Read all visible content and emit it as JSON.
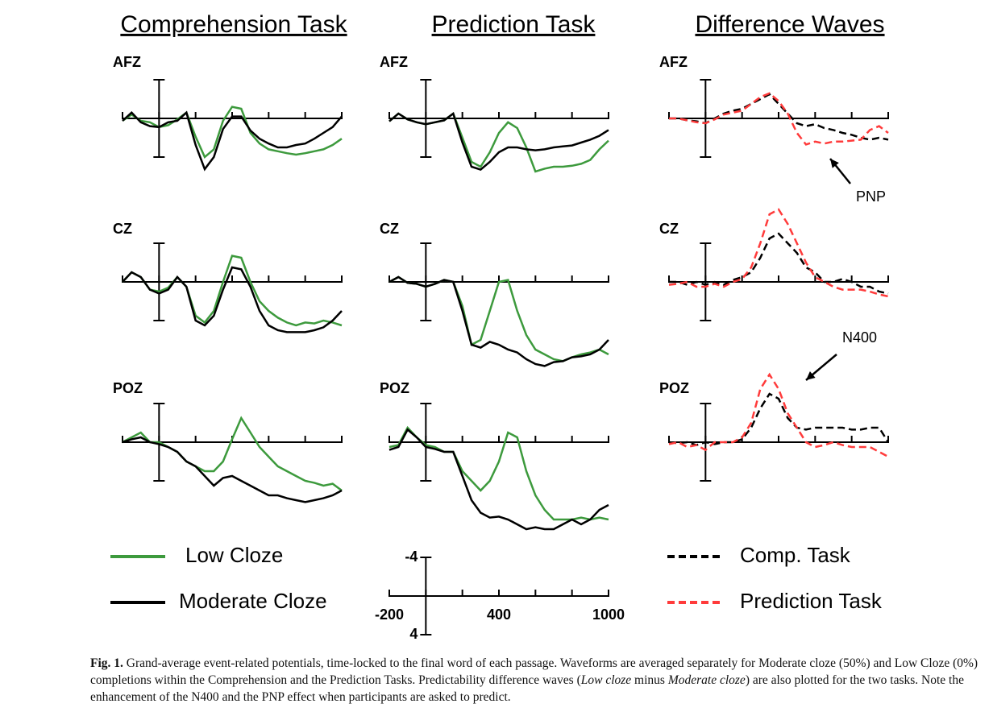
{
  "column_titles": [
    "Comprehension Task",
    "Prediction Task",
    "Difference Waves"
  ],
  "chart_data": [
    {
      "type": "line",
      "title": "AFZ",
      "x": [
        -200,
        -150,
        -100,
        -50,
        0,
        50,
        100,
        150,
        200,
        250,
        300,
        350,
        400,
        450,
        500,
        550,
        600,
        650,
        700,
        750,
        800,
        850,
        900,
        950,
        1000
      ],
      "series": [
        {
          "color": "#3d9a3d",
          "style": "solid",
          "values": [
            0.25,
            -0.4,
            0.25,
            0.4,
            0.9,
            0.7,
            0.1,
            -0.6,
            1.9,
            4,
            3.2,
            0.25,
            -1.2,
            -1,
            1.5,
            2.6,
            3.2,
            3.4,
            3.6,
            3.75,
            3.6,
            3.4,
            3.2,
            2.75,
            2.1
          ]
        },
        {
          "color": "#000000",
          "style": "solid",
          "values": [
            0.25,
            -0.6,
            0.4,
            0.8,
            0.9,
            0.4,
            0.25,
            -0.6,
            2.75,
            5.25,
            4,
            1.1,
            -0.2,
            -0.2,
            1.25,
            2.1,
            2.6,
            3,
            3,
            2.75,
            2.6,
            2.1,
            1.5,
            0.9,
            -0.2
          ]
        }
      ]
    },
    {
      "type": "line",
      "title": "AFZ",
      "x": [
        -200,
        -150,
        -100,
        -50,
        0,
        50,
        100,
        150,
        200,
        250,
        300,
        350,
        400,
        450,
        500,
        550,
        600,
        650,
        700,
        750,
        800,
        850,
        900,
        950,
        1000
      ],
      "series": [
        {
          "color": "#3d9a3d",
          "style": "solid",
          "values": [
            0.3,
            -0.5,
            0.1,
            0.4,
            0.6,
            0.4,
            0.2,
            -0.5,
            2,
            4.5,
            5,
            3.5,
            1.5,
            0.4,
            1,
            3,
            5.5,
            5.2,
            5,
            5,
            4.9,
            4.7,
            4.3,
            3.2,
            2.3
          ]
        },
        {
          "color": "#000000",
          "style": "solid",
          "values": [
            0.3,
            -0.5,
            0.1,
            0.4,
            0.6,
            0.4,
            0.2,
            -0.5,
            2.5,
            5,
            5.3,
            4.5,
            3.5,
            3,
            3,
            3.2,
            3.3,
            3.2,
            3,
            2.9,
            2.8,
            2.5,
            2.2,
            1.8,
            1.2
          ]
        }
      ]
    },
    {
      "type": "line",
      "title": "AFZ",
      "annotation": "PNP",
      "x": [
        -200,
        -150,
        -100,
        -50,
        0,
        50,
        100,
        150,
        200,
        250,
        300,
        350,
        400,
        450,
        500,
        550,
        600,
        650,
        700,
        750,
        800,
        850,
        900,
        950,
        1000
      ],
      "series": [
        {
          "color": "#000000",
          "style": "dashed",
          "values": [
            0,
            0,
            0.2,
            0.3,
            0.5,
            0,
            -0.5,
            -0.8,
            -1,
            -1.5,
            -2,
            -2.5,
            -1.5,
            -0.5,
            0.5,
            0.8,
            0.6,
            1,
            1.2,
            1.5,
            1.7,
            2,
            2.2,
            2,
            2.2
          ]
        },
        {
          "color": "#ff3b3b",
          "style": "dashed",
          "values": [
            0,
            0,
            0.2,
            0.4,
            0.5,
            0.1,
            -0.4,
            -0.6,
            -0.8,
            -1.5,
            -2.2,
            -2.6,
            -1.8,
            -0.5,
            1.5,
            2.7,
            2.4,
            2.6,
            2.4,
            2.4,
            2.3,
            2.2,
            1.2,
            0.8,
            1.5
          ]
        }
      ]
    },
    {
      "type": "line",
      "title": "CZ",
      "x": [
        -200,
        -150,
        -100,
        -50,
        0,
        50,
        100,
        150,
        200,
        250,
        300,
        350,
        400,
        450,
        500,
        550,
        600,
        650,
        700,
        750,
        800,
        850,
        900,
        950,
        1000
      ],
      "series": [
        {
          "color": "#3d9a3d",
          "style": "solid",
          "values": [
            0,
            -1,
            -0.5,
            0.8,
            1,
            0.6,
            -0.5,
            0.5,
            3.5,
            4.2,
            3,
            0,
            -2.7,
            -2.5,
            0,
            2,
            3,
            3.7,
            4.2,
            4.5,
            4.2,
            4.3,
            4,
            4.2,
            4.5
          ]
        },
        {
          "color": "#000000",
          "style": "solid",
          "values": [
            0,
            -1,
            -0.5,
            0.8,
            1.2,
            0.8,
            -0.5,
            0.5,
            4,
            4.5,
            3.5,
            0.8,
            -1.5,
            -1.3,
            0.5,
            3,
            4.5,
            5,
            5.2,
            5.2,
            5.2,
            5,
            4.7,
            4,
            3
          ]
        }
      ]
    },
    {
      "type": "line",
      "title": "CZ",
      "x": [
        -200,
        -150,
        -100,
        -50,
        0,
        50,
        100,
        150,
        200,
        250,
        300,
        350,
        400,
        450,
        500,
        550,
        600,
        650,
        700,
        750,
        800,
        850,
        900,
        950,
        1000
      ],
      "series": [
        {
          "color": "#3d9a3d",
          "style": "solid",
          "values": [
            0,
            -0.5,
            0.1,
            0.2,
            0.5,
            0.2,
            -0.2,
            0,
            2.5,
            6.5,
            6,
            3,
            0,
            -0.2,
            3,
            5.5,
            7,
            7.5,
            8,
            8.2,
            7.8,
            7.5,
            7.3,
            7,
            7.5
          ]
        },
        {
          "color": "#000000",
          "style": "solid",
          "values": [
            0,
            -0.5,
            0.1,
            0.2,
            0.5,
            0.2,
            -0.2,
            0,
            3,
            6.5,
            6.8,
            6.2,
            6.5,
            7,
            7.3,
            8,
            8.5,
            8.7,
            8.3,
            8.2,
            7.8,
            7.7,
            7.5,
            7,
            6
          ]
        }
      ]
    },
    {
      "type": "line",
      "title": "CZ",
      "x": [
        -200,
        -150,
        -100,
        -50,
        0,
        50,
        100,
        150,
        200,
        250,
        300,
        350,
        400,
        450,
        500,
        550,
        600,
        650,
        700,
        750,
        800,
        850,
        900,
        950,
        1000
      ],
      "series": [
        {
          "color": "#000000",
          "style": "dashed",
          "values": [
            0,
            0,
            0.3,
            0,
            0.3,
            0,
            0.3,
            -0.2,
            -0.5,
            -1,
            -2.5,
            -4.5,
            -5,
            -4,
            -3,
            -1.5,
            -1,
            0,
            0,
            -0.3,
            0,
            0.5,
            0.5,
            1,
            1.2
          ]
        },
        {
          "color": "#ff3b3b",
          "style": "dashed",
          "values": [
            0.3,
            0.2,
            0,
            0.5,
            0.5,
            0.2,
            0.5,
            0,
            -0.3,
            -1.5,
            -4,
            -7,
            -7.5,
            -6,
            -4,
            -2,
            -0.5,
            0,
            0.5,
            0.8,
            0.8,
            0.8,
            1,
            1.3,
            1.5
          ]
        }
      ]
    },
    {
      "type": "line",
      "title": "POZ",
      "x": [
        -200,
        -150,
        -100,
        -50,
        0,
        50,
        100,
        150,
        200,
        250,
        300,
        350,
        400,
        450,
        500,
        550,
        600,
        650,
        700,
        750,
        800,
        850,
        900,
        950,
        1000
      ],
      "series": [
        {
          "color": "#3d9a3d",
          "style": "solid",
          "values": [
            0,
            -0.5,
            -1,
            0,
            0,
            0.5,
            1,
            2,
            2.5,
            3,
            3,
            2,
            -0.3,
            -2.5,
            -1,
            0.5,
            1.5,
            2.5,
            3,
            3.5,
            4,
            4.2,
            4.5,
            4.3,
            5
          ]
        },
        {
          "color": "#000000",
          "style": "solid",
          "values": [
            0,
            -0.3,
            -0.5,
            0,
            0.2,
            0.5,
            1,
            2,
            2.5,
            3.5,
            4.5,
            3.7,
            3.5,
            4,
            4.5,
            5,
            5.5,
            5.5,
            5.8,
            6,
            6.2,
            6,
            5.8,
            5.5,
            5
          ]
        }
      ]
    },
    {
      "type": "line",
      "title": "POZ",
      "x": [
        -200,
        -150,
        -100,
        -50,
        0,
        50,
        100,
        150,
        200,
        250,
        300,
        350,
        400,
        450,
        500,
        550,
        600,
        650,
        700,
        750,
        800,
        850,
        900,
        950,
        1000
      ],
      "series": [
        {
          "color": "#3d9a3d",
          "style": "solid",
          "values": [
            0.5,
            0.3,
            -1.5,
            -0.5,
            0.3,
            0.5,
            1,
            1,
            3,
            4,
            5,
            4,
            2,
            -1,
            -0.5,
            3,
            5.5,
            7,
            8,
            8,
            8,
            7.8,
            8,
            7.8,
            8
          ]
        },
        {
          "color": "#000000",
          "style": "solid",
          "values": [
            0.8,
            0.5,
            -1.3,
            -0.5,
            0.5,
            0.7,
            1,
            1,
            3.5,
            6,
            7.3,
            7.8,
            7.7,
            8,
            8.5,
            9,
            8.8,
            9,
            9,
            8.5,
            8,
            8.5,
            8,
            7,
            6.5
          ]
        }
      ]
    },
    {
      "type": "line",
      "title": "POZ",
      "annotation": "N400",
      "x": [
        -200,
        -150,
        -100,
        -50,
        0,
        50,
        100,
        150,
        200,
        250,
        300,
        350,
        400,
        450,
        500,
        550,
        600,
        650,
        700,
        750,
        800,
        850,
        900,
        950,
        1000
      ],
      "series": [
        {
          "color": "#000000",
          "style": "dashed",
          "values": [
            0,
            0.1,
            0,
            0.3,
            0,
            0.2,
            0,
            0,
            -0.3,
            -1.5,
            -3.5,
            -5,
            -4.5,
            -2.5,
            -1.5,
            -1.3,
            -1.5,
            -1.5,
            -1.5,
            -1.5,
            -1.3,
            -1.3,
            -1.5,
            -1.5,
            0
          ]
        },
        {
          "color": "#ff3b3b",
          "style": "dashed",
          "values": [
            0.2,
            0,
            0.5,
            0.3,
            0.8,
            0,
            0,
            0,
            -0.5,
            -2,
            -5.5,
            -7,
            -5.5,
            -3,
            -1.5,
            0,
            0.5,
            0.3,
            0,
            0.3,
            0.5,
            0.5,
            0.5,
            1,
            1.5
          ]
        }
      ]
    }
  ],
  "scale": {
    "xlim": [
      -200,
      1000
    ],
    "ylim": [
      4,
      -4
    ],
    "xticks": [
      -200,
      0,
      200,
      400,
      600,
      800,
      1000
    ],
    "xticklabels": [
      -200,
      400,
      1000
    ],
    "yticks": [
      -4,
      4
    ]
  },
  "legend": [
    {
      "name": "Low Cloze",
      "color": "#3d9a3d",
      "style": "solid"
    },
    {
      "name": "Moderate Cloze",
      "color": "#000000",
      "style": "solid"
    },
    {
      "name": "Comp. Task",
      "color": "#000000",
      "style": "dashed"
    },
    {
      "name": "Prediction Task",
      "color": "#ff3b3b",
      "style": "dashed"
    }
  ],
  "caption": {
    "label": "Fig. 1.",
    "parts": [
      "Grand-average event-related potentials, time-locked to the final word of each passage. Waveforms are averaged separately for Moderate cloze (50%) and Low Cloze (0%) completions within the Comprehension and the Prediction Tasks. Predictability difference waves (",
      "Low cloze",
      " minus ",
      "Moderate cloze",
      ") are also plotted for the two tasks. Note the enhancement of the N400 and the PNP effect when participants are asked to predict."
    ]
  }
}
